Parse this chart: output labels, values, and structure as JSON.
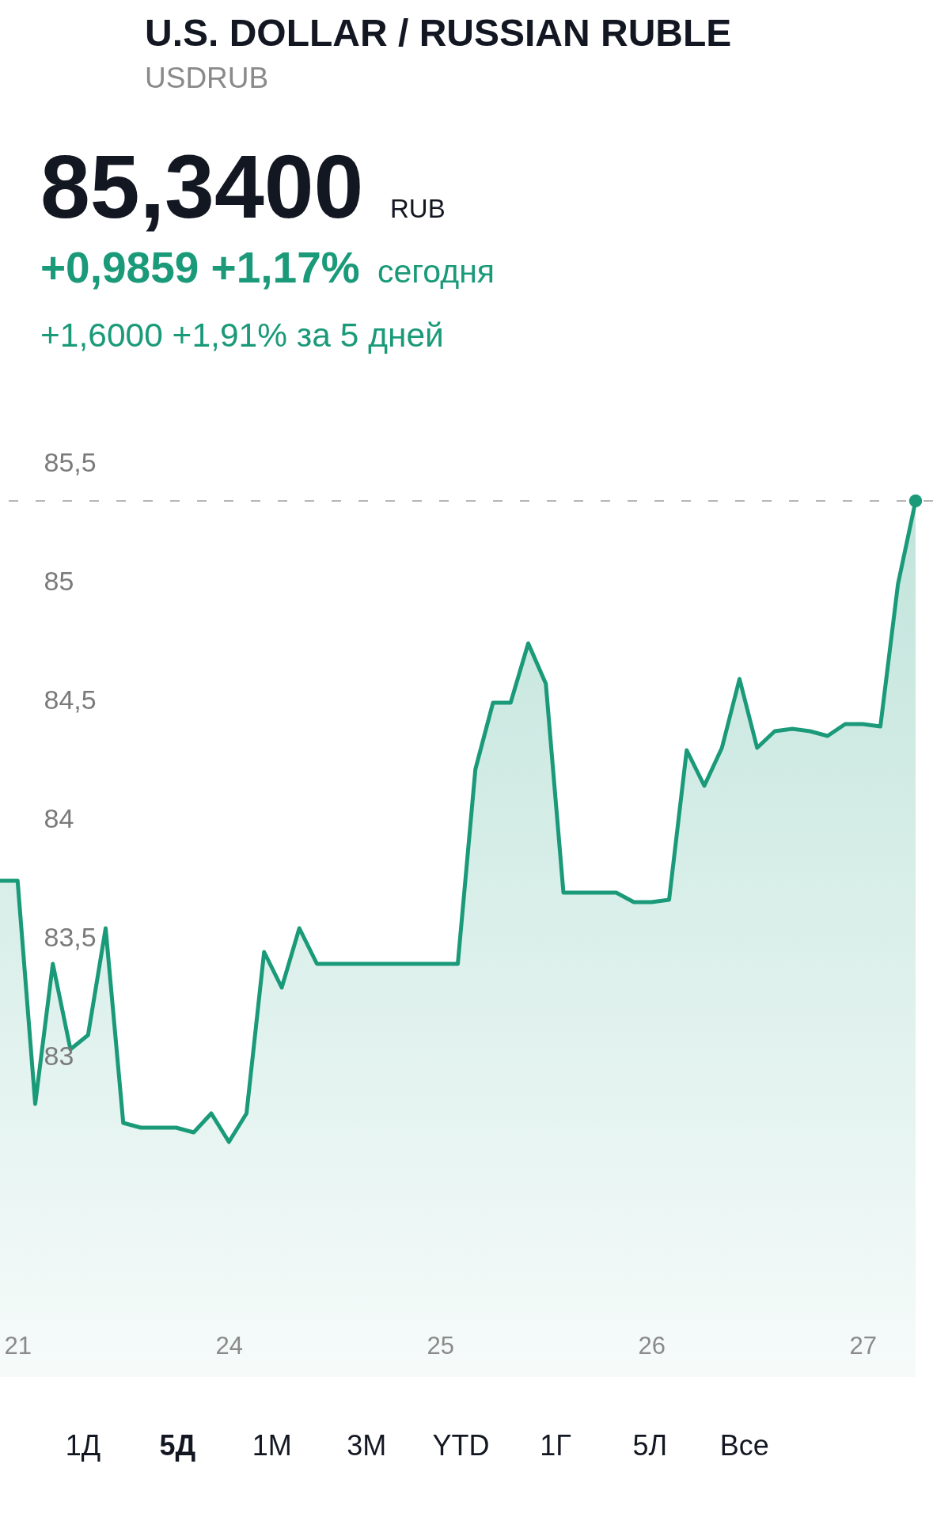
{
  "chart_data": {
    "type": "area",
    "title": "U.S. DOLLAR / RUSSIAN RUBLE",
    "subtitle": "USDRUB",
    "annotations": [
      "85,3400",
      "RUB",
      "+0,9859 +1,17%",
      "сегодня",
      "+1,6000 +1,91% за 5 дней",
      "1Д",
      "5Д",
      "1М",
      "3М",
      "YTD",
      "1Г",
      "5Л",
      "Все"
    ],
    "categories": [
      null,
      "21",
      null,
      null,
      null,
      null,
      null,
      null,
      null,
      null,
      null,
      null,
      null,
      "24",
      null,
      null,
      null,
      null,
      null,
      null,
      null,
      null,
      null,
      null,
      null,
      "25",
      null,
      null,
      null,
      null,
      null,
      null,
      null,
      null,
      null,
      null,
      null,
      "26",
      null,
      null,
      null,
      null,
      null,
      null,
      null,
      null,
      null,
      null,
      null,
      "27",
      null,
      null,
      null
    ],
    "series": [
      {
        "color": "#1a9a79",
        "values": [
          83.74,
          83.74,
          82.8,
          83.39,
          83.03,
          83.09,
          83.54,
          82.72,
          82.7,
          82.7,
          82.7,
          82.68,
          82.76,
          82.64,
          82.76,
          83.44,
          83.29,
          83.54,
          83.39,
          83.39,
          83.39,
          83.39,
          83.39,
          83.39,
          83.39,
          83.39,
          83.39,
          84.21,
          84.49,
          84.49,
          84.74,
          84.57,
          83.69,
          83.69,
          83.69,
          83.69,
          83.65,
          83.65,
          83.66,
          84.29,
          84.14,
          84.3,
          84.59,
          84.3,
          84.37,
          84.38,
          84.37,
          84.35,
          84.4,
          84.4,
          84.39,
          84.99,
          85.34
        ]
      },
      {
        "type": "scatter",
        "color": "#1a9a79",
        "values": [
          null,
          null,
          null,
          null,
          null,
          null,
          null,
          null,
          null,
          null,
          null,
          null,
          null,
          null,
          null,
          null,
          null,
          null,
          null,
          null,
          null,
          null,
          null,
          null,
          null,
          null,
          null,
          null,
          null,
          null,
          null,
          null,
          null,
          null,
          null,
          null,
          null,
          null,
          null,
          null,
          null,
          null,
          null,
          null,
          null,
          null,
          null,
          null,
          null,
          null,
          null,
          null,
          85.34
        ]
      }
    ],
    "ylim": [
      81.06,
      87.45
    ],
    "yticks": [
      {
        "value": 83,
        "label": "83"
      },
      {
        "value": 83.5,
        "label": "83,5"
      },
      {
        "value": 84,
        "label": "84"
      },
      {
        "value": 84.5,
        "label": "84,5"
      },
      {
        "value": 85,
        "label": "85"
      },
      {
        "value": 85.5,
        "label": "85,5"
      }
    ],
    "ref_lines": [
      {
        "axis": "y",
        "value": 85.34,
        "color": "#9e9e9e",
        "line_style": "dashed"
      }
    ],
    "grid": false
  }
}
